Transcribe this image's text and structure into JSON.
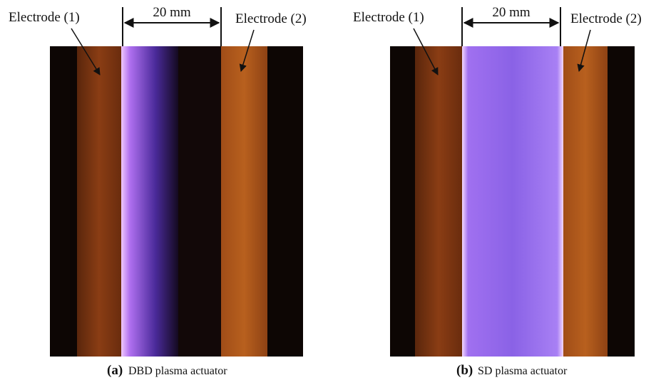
{
  "panels": [
    {
      "electrode_left": "Electrode (1)",
      "electrode_right": "Electrode (2)",
      "dimension": "20 mm",
      "tag": "(a)",
      "caption": "DBD plasma actuator"
    },
    {
      "electrode_left": "Electrode (1)",
      "electrode_right": "Electrode (2)",
      "dimension": "20 mm",
      "tag": "(b)",
      "caption": "SD plasma actuator"
    }
  ]
}
